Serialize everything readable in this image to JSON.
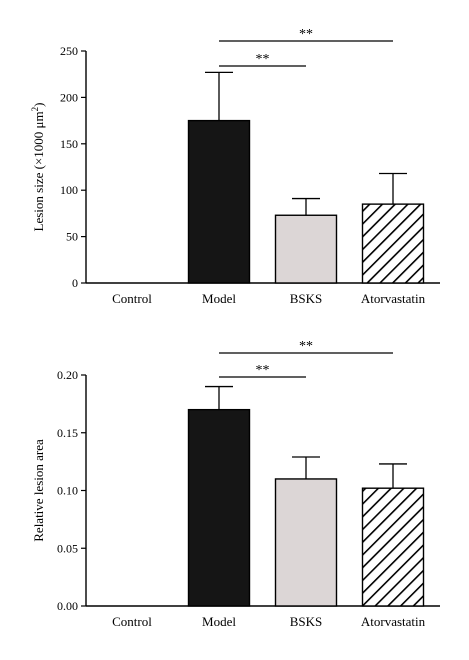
{
  "chart_data": [
    {
      "type": "bar",
      "categories": [
        "Control",
        "Model",
        "BSKS",
        "Atorvastatin"
      ],
      "values": [
        0,
        175,
        73,
        85
      ],
      "errors": [
        0,
        52,
        18,
        33
      ],
      "ylabel_main": "Lesion size (×1000 μm",
      "ylabel_sup": "2",
      "ylabel_close": ")",
      "ylim": [
        0,
        250
      ],
      "yticks": [
        0,
        50,
        100,
        150,
        200,
        250
      ],
      "ytick_labels": [
        "0",
        "50",
        "100",
        "150",
        "200",
        "250"
      ],
      "bar_styles": [
        "none",
        "solid",
        "light",
        "hatch"
      ],
      "significance": [
        {
          "from": 1,
          "to": 2,
          "label": "**"
        },
        {
          "from": 1,
          "to": 3,
          "label": "**"
        }
      ]
    },
    {
      "type": "bar",
      "categories": [
        "Control",
        "Model",
        "BSKS",
        "Atorvastatin"
      ],
      "values": [
        0,
        0.17,
        0.11,
        0.102
      ],
      "errors": [
        0,
        0.02,
        0.019,
        0.021
      ],
      "ylabel_main": "Relative lesion area",
      "ylim": [
        0,
        0.2
      ],
      "yticks": [
        0,
        0.05,
        0.1,
        0.15,
        0.2
      ],
      "ytick_labels": [
        "0.00",
        "0.05",
        "0.10",
        "0.15",
        "0.20"
      ],
      "bar_styles": [
        "none",
        "solid",
        "light",
        "hatch"
      ],
      "significance": [
        {
          "from": 1,
          "to": 2,
          "label": "**"
        },
        {
          "from": 1,
          "to": 3,
          "label": "**"
        }
      ]
    }
  ],
  "colors": {
    "solid": "#151515",
    "light": "#dcd6d6",
    "hatch": "#000000",
    "axis": "#000000"
  }
}
